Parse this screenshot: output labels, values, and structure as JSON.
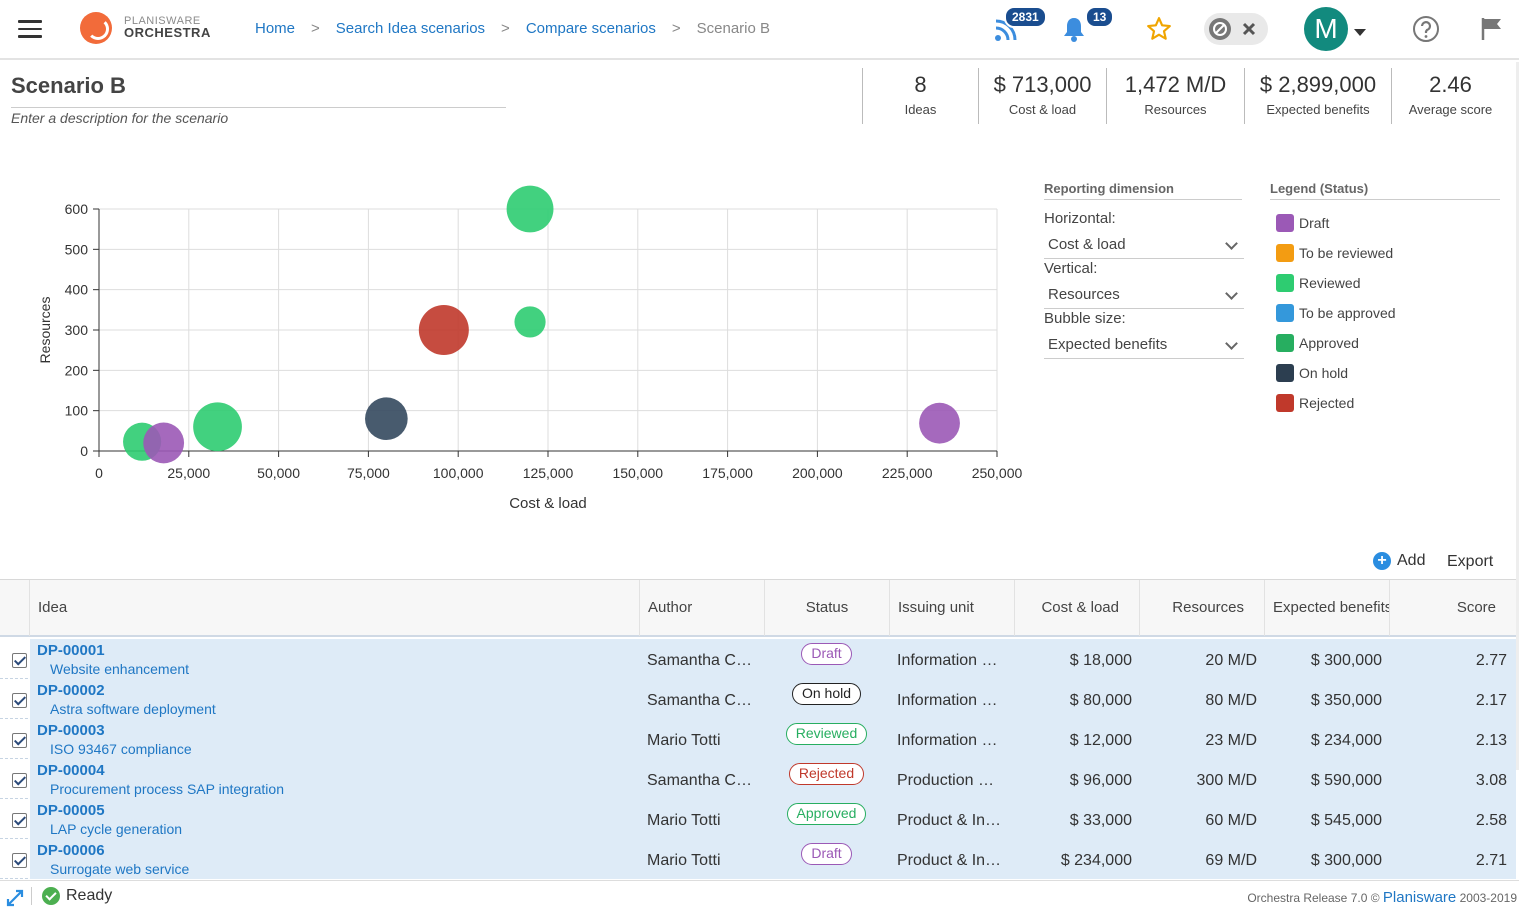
{
  "header": {
    "logo_line1": "PLANISWARE",
    "logo_line2": "ORCHESTRA",
    "breadcrumb": [
      "Home",
      "Search Idea scenarios",
      "Compare scenarios"
    ],
    "breadcrumb_current": "Scenario B",
    "feed_count": "2831",
    "notification_count": "13",
    "avatar_letter": "M"
  },
  "scenario": {
    "title": "Scenario B",
    "description": "Enter a description for the scenario"
  },
  "kpis": [
    {
      "value": "8",
      "label": "Ideas"
    },
    {
      "value": "$ 713,000",
      "label": "Cost & load"
    },
    {
      "value": "1,472 M/D",
      "label": "Resources"
    },
    {
      "value": "$ 2,899,000",
      "label": "Expected benefits"
    },
    {
      "value": "2.46",
      "label": "Average score"
    }
  ],
  "chart_data": {
    "type": "scatter",
    "xlabel": "Cost & load",
    "ylabel": "Resources",
    "xlim": [
      0,
      250000
    ],
    "ylim": [
      0,
      600
    ],
    "xticks": [
      0,
      25000,
      50000,
      75000,
      100000,
      125000,
      150000,
      175000,
      200000,
      225000,
      250000
    ],
    "xtick_labels": [
      "0",
      "25,000",
      "50,000",
      "75,000",
      "100,000",
      "125,000",
      "150,000",
      "175,000",
      "200,000",
      "225,000",
      "250,000"
    ],
    "yticks": [
      0,
      100,
      200,
      300,
      400,
      500,
      600
    ],
    "grid": true,
    "points": [
      {
        "x": 12000,
        "y": 23,
        "size": 234000,
        "status": "Reviewed",
        "color": "#2ecc71"
      },
      {
        "x": 18000,
        "y": 20,
        "size": 300000,
        "status": "Draft",
        "color": "#9b59b6"
      },
      {
        "x": 33000,
        "y": 60,
        "size": 545000,
        "status": "Approved",
        "color": "#2ecc71"
      },
      {
        "x": 80000,
        "y": 80,
        "size": 350000,
        "status": "On hold",
        "color": "#34495e"
      },
      {
        "x": 96000,
        "y": 300,
        "size": 590000,
        "status": "Rejected",
        "color": "#c0392b"
      },
      {
        "x": 120000,
        "y": 600,
        "size": 480000,
        "status": "Approved",
        "color": "#2ecc71"
      },
      {
        "x": 120000,
        "y": 320,
        "size": 100000,
        "status": "Reviewed",
        "color": "#2ecc71"
      },
      {
        "x": 234000,
        "y": 69,
        "size": 300000,
        "status": "Draft",
        "color": "#9b59b6"
      }
    ]
  },
  "controls": {
    "reporting_heading": "Reporting dimension",
    "horizontal_label": "Horizontal:",
    "horizontal_value": "Cost & load",
    "vertical_label": "Vertical:",
    "vertical_value": "Resources",
    "bubble_label": "Bubble size:",
    "bubble_value": "Expected benefits",
    "legend_heading": "Legend (Status)",
    "legend": [
      {
        "label": "Draft",
        "color": "#9b59b6"
      },
      {
        "label": "To be reviewed",
        "color": "#f39c12"
      },
      {
        "label": "Reviewed",
        "color": "#2ecc71"
      },
      {
        "label": "To be approved",
        "color": "#3498db"
      },
      {
        "label": "Approved",
        "color": "#27ae60"
      },
      {
        "label": "On hold",
        "color": "#2c3e50"
      },
      {
        "label": "Rejected",
        "color": "#c0392b"
      }
    ]
  },
  "actions": {
    "add": "Add",
    "export": "Export"
  },
  "table": {
    "columns": [
      "Idea",
      "Author",
      "Status",
      "Issuing unit",
      "Cost & load",
      "Resources",
      "Expected benefits",
      "Score"
    ],
    "rows": [
      {
        "id": "DP-00001",
        "name": "Website enhancement",
        "author": "Samantha C…",
        "status": "Draft",
        "unit": "Information …",
        "cost": "$ 18,000",
        "resources": "20 M/D",
        "benefits": "$ 300,000",
        "score": "2.77"
      },
      {
        "id": "DP-00002",
        "name": "Astra software deployment",
        "author": "Samantha C…",
        "status": "On hold",
        "unit": "Information …",
        "cost": "$ 80,000",
        "resources": "80 M/D",
        "benefits": "$ 350,000",
        "score": "2.17"
      },
      {
        "id": "DP-00003",
        "name": "ISO 93467 compliance",
        "author": "Mario Totti",
        "status": "Reviewed",
        "unit": "Information …",
        "cost": "$ 12,000",
        "resources": "23 M/D",
        "benefits": "$ 234,000",
        "score": "2.13"
      },
      {
        "id": "DP-00004",
        "name": "Procurement process SAP integration",
        "author": "Samantha C…",
        "status": "Rejected",
        "unit": "Production …",
        "cost": "$ 96,000",
        "resources": "300 M/D",
        "benefits": "$ 590,000",
        "score": "3.08"
      },
      {
        "id": "DP-00005",
        "name": "LAP cycle generation",
        "author": "Mario Totti",
        "status": "Approved",
        "unit": "Product & In…",
        "cost": "$ 33,000",
        "resources": "60 M/D",
        "benefits": "$ 545,000",
        "score": "2.58"
      },
      {
        "id": "DP-00006",
        "name": "Surrogate web service",
        "author": "Mario Totti",
        "status": "Draft",
        "unit": "Product & In…",
        "cost": "$ 234,000",
        "resources": "69 M/D",
        "benefits": "$ 300,000",
        "score": "2.71"
      }
    ]
  },
  "status_colors": {
    "Draft": "#9b59b6",
    "On hold": "#222222",
    "Reviewed": "#27ae60",
    "Rejected": "#c0392b",
    "Approved": "#27ae60"
  },
  "footer": {
    "ready": "Ready",
    "release": "Orchestra Release 7.0 ©",
    "brand": "Planisware",
    "years": "2003-2019"
  }
}
